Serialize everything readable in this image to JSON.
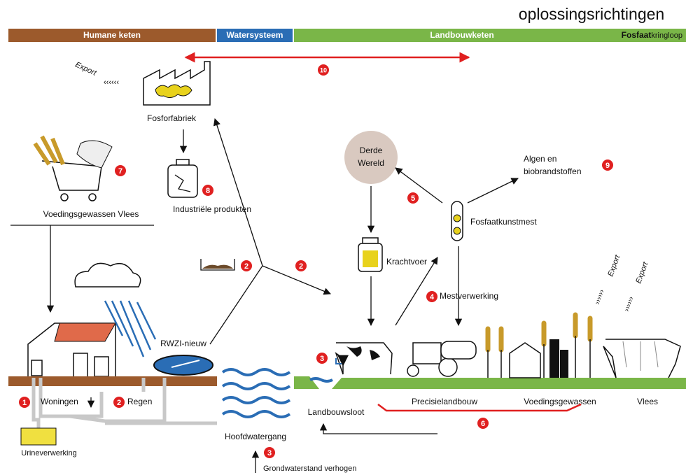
{
  "title": "oplossingsrichtingen",
  "header_bar": {
    "humane": "Humane keten",
    "water": "Watersysteem",
    "landbouw": "Landbouwketen",
    "fosfaat_bold": "Fosfaat",
    "fosfaat_rest": "kringloop"
  },
  "labels": {
    "export_left": "Export",
    "fosforfabriek": "Fosforfabriek",
    "voedingsgewassen_vlees": "Voedingsgewassen Vlees",
    "industriele_produkten": "Industriële produkten",
    "derde": "Derde",
    "wereld": "Wereld",
    "algen_en": "Algen en",
    "biobrandstoffen": "biobrandstoffen",
    "fosfaatkunstmest": "Fosfaatkunstmest",
    "krachtvoer": "Krachtvoer",
    "mestverwerking": "Mestverwerking",
    "rwzi": "RWZI-nieuw",
    "woningen": "Woningen",
    "regen": "Regen",
    "urineverwerking": "Urineverwerking",
    "hoofdwatergang": "Hoofdwatergang",
    "landbouwsloot": "Landbouwsloot",
    "precisielandbouw": "Precisielandbouw",
    "voedingsgewassen": "Voedingsgewassen",
    "vlees": "Vlees",
    "grondwaterstand": "Grondwaterstand verhogen",
    "export_right_1": "Export",
    "export_right_2": "Export"
  },
  "badges": {
    "b10": 10,
    "b7": 7,
    "b8": 8,
    "b5": 5,
    "b9": 9,
    "b2_manure": 2,
    "b2_junction": 2,
    "b4": 4,
    "b3_sloot": 3,
    "b1": 1,
    "b2_regen": 2,
    "b3_grond": 3,
    "b6": 6
  }
}
